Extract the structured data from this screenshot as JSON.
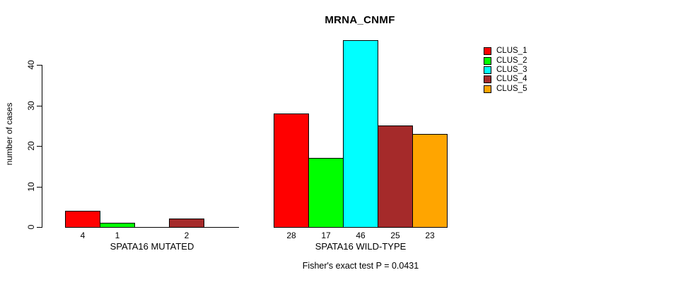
{
  "title": "MRNA_CNMF",
  "chart_data": {
    "type": "bar",
    "title": "MRNA_CNMF",
    "ylabel": "number of cases",
    "xlabel": "",
    "ylim": [
      0,
      46
    ],
    "yticks": [
      0,
      10,
      20,
      30,
      40
    ],
    "grid": false,
    "categories": [
      "CLUS_1",
      "CLUS_2",
      "CLUS_3",
      "CLUS_4",
      "CLUS_5"
    ],
    "colors": [
      "#FF0000",
      "#00FF00",
      "#00FFFF",
      "#A52A2A",
      "#FFA500"
    ],
    "groups": [
      {
        "label": "SPATA16 MUTATED",
        "values": [
          4,
          1,
          0,
          2,
          0
        ]
      },
      {
        "label": "SPATA16 WILD-TYPE",
        "values": [
          28,
          17,
          46,
          25,
          23
        ]
      }
    ],
    "bar_value_labels_shown": [
      "4",
      "1",
      "2",
      "28",
      "17",
      "46",
      "25",
      "23"
    ],
    "legend": {
      "position": "top-right",
      "entries": [
        "CLUS_1",
        "CLUS_2",
        "CLUS_3",
        "CLUS_4",
        "CLUS_5"
      ]
    },
    "annotation": "Fisher's exact test P = 0.0431"
  }
}
